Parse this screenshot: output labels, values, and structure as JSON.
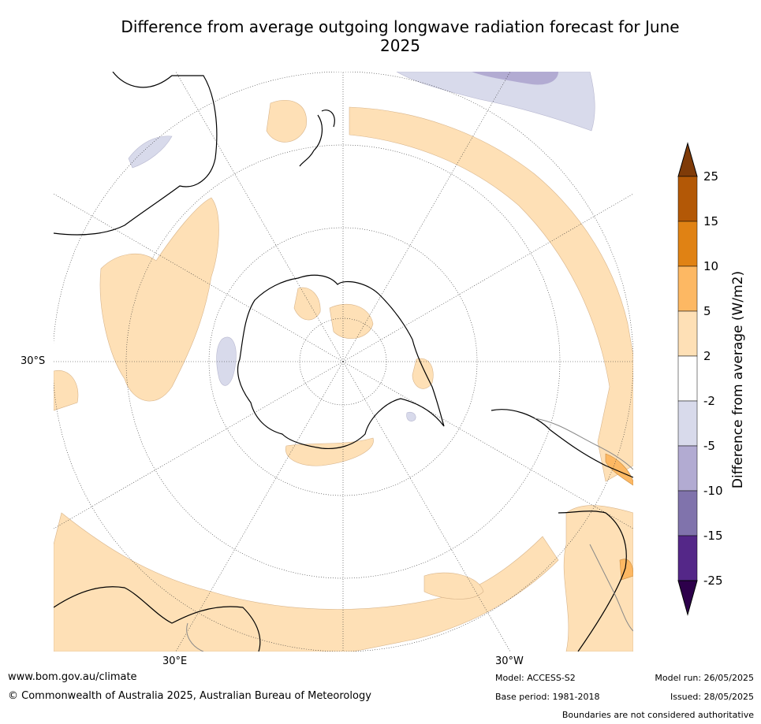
{
  "title": "Difference from average outgoing longwave radiation forecast for June 2025",
  "map": {
    "lat_label": "30°S",
    "lon_labels": [
      "30°E",
      "30°W"
    ]
  },
  "colorbar": {
    "label": "Difference from average (W/m2)",
    "ticks": [
      "25",
      "15",
      "10",
      "5",
      "2",
      "-2",
      "-5",
      "-10",
      "-15",
      "-25"
    ],
    "colors": {
      "over": "#7f3b08",
      "15_25": "#b35806",
      "10_15": "#e08214",
      "5_10": "#fdb863",
      "2_5": "#fee0b6",
      "neg2_2": "#ffffff",
      "neg5_neg2": "#d8daeb",
      "neg10_neg5": "#b2abd2",
      "neg15_neg10": "#8073ac",
      "neg25_neg15": "#542788",
      "under": "#2d004b"
    }
  },
  "footer": {
    "url": "www.bom.gov.au/climate",
    "copyright": "© Commonwealth of Australia 2025, Australian Bureau of Meteorology",
    "model": "Model: ACCESS-S2",
    "base_period": "Base period: 1981-2018",
    "model_run": "Model run: 26/05/2025",
    "issued": "Issued: 28/05/2025",
    "disclaimer": "Boundaries are not considered authoritative"
  }
}
